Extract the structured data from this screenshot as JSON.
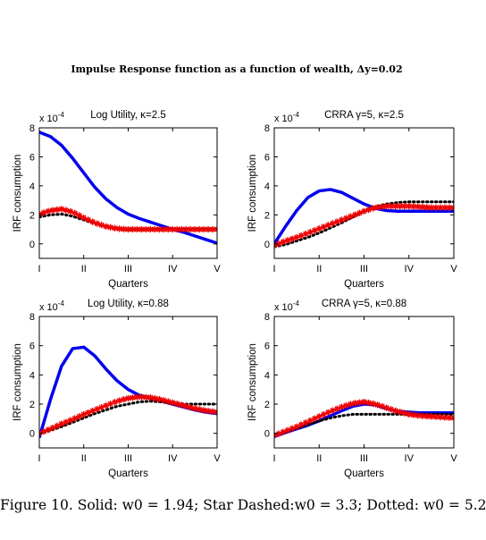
{
  "figure_title": "Impulse Response function as a function of wealth, Δy=0.02",
  "caption": "Figure 10.  Solid:  w0 = 1.94; Star Dashed:w0 = 3.3; Dotted:  w0 = 5.2",
  "colors": {
    "solid": "#0000ee",
    "star": "#ee0000",
    "dotted": "#000000"
  },
  "chart_data": [
    {
      "type": "line",
      "title": "Log Utility, κ=2.5",
      "xlabel": "Quarters",
      "ylabel": "IRF consumption",
      "scale_label": "x 10",
      "scale_exponent": "-4",
      "x_ticks": [
        "I",
        "II",
        "III",
        "IV",
        "V"
      ],
      "y_ticks": [
        "0",
        "2",
        "4",
        "6",
        "8"
      ],
      "xlim": [
        1,
        5
      ],
      "ylim": [
        -1,
        8
      ],
      "x": [
        1,
        1.25,
        1.5,
        1.75,
        2,
        2.25,
        2.5,
        2.75,
        3,
        3.25,
        3.5,
        3.75,
        4,
        4.25,
        4.5,
        4.75,
        5
      ],
      "series": [
        {
          "style": "solid",
          "values": [
            7.7,
            7.4,
            6.8,
            5.9,
            4.9,
            3.9,
            3.1,
            2.5,
            2.05,
            1.75,
            1.5,
            1.25,
            1.0,
            0.8,
            0.55,
            0.3,
            0.05
          ]
        },
        {
          "style": "star",
          "values": [
            2.05,
            2.3,
            2.4,
            2.2,
            1.8,
            1.45,
            1.2,
            1.05,
            1.0,
            1.0,
            1.0,
            1.0,
            1.0,
            1.0,
            1.0,
            1.0,
            1.0
          ]
        },
        {
          "style": "dotted",
          "values": [
            1.85,
            2.0,
            2.05,
            1.9,
            1.65,
            1.4,
            1.2,
            1.05,
            0.98,
            0.98,
            1.0,
            1.02,
            1.02,
            1.03,
            1.03,
            1.03,
            1.03
          ]
        }
      ]
    },
    {
      "type": "line",
      "title": "CRRA γ=5, κ=2.5",
      "xlabel": "Quarters",
      "ylabel": "IRF consumption",
      "scale_label": "x 10",
      "scale_exponent": "-4",
      "x_ticks": [
        "I",
        "II",
        "III",
        "IV",
        "V"
      ],
      "y_ticks": [
        "0",
        "2",
        "4",
        "6",
        "8"
      ],
      "xlim": [
        1,
        5
      ],
      "ylim": [
        -1,
        8
      ],
      "x": [
        1,
        1.25,
        1.5,
        1.75,
        2,
        2.25,
        2.5,
        2.75,
        3,
        3.25,
        3.5,
        3.75,
        4,
        4.25,
        4.5,
        4.75,
        5
      ],
      "series": [
        {
          "style": "solid",
          "values": [
            0.0,
            1.2,
            2.3,
            3.2,
            3.65,
            3.75,
            3.55,
            3.15,
            2.75,
            2.45,
            2.3,
            2.25,
            2.25,
            2.25,
            2.25,
            2.25,
            2.25
          ]
        },
        {
          "style": "star",
          "values": [
            -0.1,
            0.2,
            0.45,
            0.75,
            1.05,
            1.35,
            1.65,
            1.95,
            2.25,
            2.5,
            2.6,
            2.6,
            2.6,
            2.55,
            2.5,
            2.5,
            2.5
          ]
        },
        {
          "style": "dotted",
          "values": [
            -0.2,
            -0.05,
            0.2,
            0.45,
            0.75,
            1.1,
            1.45,
            1.85,
            2.25,
            2.55,
            2.75,
            2.85,
            2.9,
            2.9,
            2.9,
            2.9,
            2.9
          ]
        }
      ]
    },
    {
      "type": "line",
      "title": "Log Utility, κ=0.88",
      "xlabel": "Quarters",
      "ylabel": "IRF consumption",
      "scale_label": "x 10",
      "scale_exponent": "-4",
      "x_ticks": [
        "I",
        "II",
        "III",
        "IV",
        "V"
      ],
      "y_ticks": [
        "0",
        "2",
        "4",
        "6",
        "8"
      ],
      "xlim": [
        1,
        5
      ],
      "ylim": [
        -1,
        8
      ],
      "x": [
        1,
        1.25,
        1.5,
        1.75,
        2,
        2.25,
        2.5,
        2.75,
        3,
        3.25,
        3.5,
        3.75,
        4,
        4.25,
        4.5,
        4.75,
        5
      ],
      "series": [
        {
          "style": "solid",
          "values": [
            -0.3,
            2.3,
            4.6,
            5.8,
            5.9,
            5.3,
            4.4,
            3.6,
            3.0,
            2.6,
            2.4,
            2.2,
            2.0,
            1.8,
            1.6,
            1.45,
            1.35
          ]
        },
        {
          "style": "star",
          "values": [
            0.0,
            0.3,
            0.65,
            0.95,
            1.3,
            1.6,
            1.9,
            2.2,
            2.4,
            2.5,
            2.45,
            2.3,
            2.1,
            1.9,
            1.7,
            1.55,
            1.45
          ]
        },
        {
          "style": "dotted",
          "values": [
            0.0,
            0.2,
            0.45,
            0.75,
            1.05,
            1.35,
            1.6,
            1.85,
            2.0,
            2.15,
            2.2,
            2.15,
            2.05,
            2.0,
            2.0,
            2.0,
            2.0
          ]
        }
      ]
    },
    {
      "type": "line",
      "title": "CRRA γ=5,  κ=0.88",
      "xlabel": "Quarters",
      "ylabel": "IRF consumption",
      "scale_label": "x 10",
      "scale_exponent": "-4",
      "x_ticks": [
        "I",
        "II",
        "III",
        "IV",
        "V"
      ],
      "y_ticks": [
        "0",
        "2",
        "4",
        "6",
        "8"
      ],
      "xlim": [
        1,
        5
      ],
      "ylim": [
        -1,
        8
      ],
      "x": [
        1,
        1.25,
        1.5,
        1.75,
        2,
        2.25,
        2.5,
        2.75,
        3,
        3.25,
        3.5,
        3.75,
        4,
        4.25,
        4.5,
        4.75,
        5
      ],
      "series": [
        {
          "style": "solid",
          "values": [
            -0.2,
            0.05,
            0.3,
            0.55,
            0.85,
            1.2,
            1.55,
            1.85,
            2.0,
            1.95,
            1.7,
            1.5,
            1.45,
            1.4,
            1.4,
            1.4,
            1.4
          ]
        },
        {
          "style": "star",
          "values": [
            -0.15,
            0.15,
            0.45,
            0.8,
            1.15,
            1.5,
            1.8,
            2.05,
            2.15,
            2.0,
            1.75,
            1.5,
            1.3,
            1.2,
            1.15,
            1.1,
            1.05
          ]
        },
        {
          "style": "dotted",
          "values": [
            -0.1,
            0.1,
            0.35,
            0.6,
            0.85,
            1.05,
            1.2,
            1.3,
            1.3,
            1.3,
            1.3,
            1.3,
            1.3,
            1.3,
            1.3,
            1.3,
            1.3
          ]
        }
      ]
    }
  ]
}
